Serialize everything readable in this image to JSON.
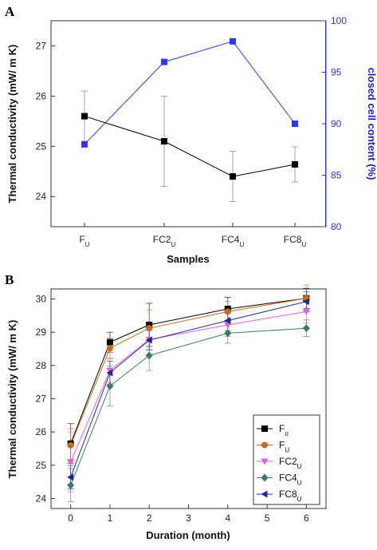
{
  "chart_data": [
    {
      "panel": "A",
      "type": "line",
      "categories": [
        "F",
        "FC2",
        "FC4",
        "FC8"
      ],
      "category_subscript": "U",
      "xlabel": "Samples",
      "ylabel": "Thermal conductivity (mW/ m K)",
      "ylim": [
        23.4,
        27.5
      ],
      "yticks": [
        24,
        25,
        26,
        27
      ],
      "y2label": "closed cell content (%)",
      "y2lim": [
        80,
        100
      ],
      "y2ticks": [
        80,
        85,
        90,
        95,
        100
      ],
      "colors": {
        "left": "#000000",
        "right": "#3333ff"
      },
      "series": [
        {
          "axis": "left",
          "marker": "square",
          "values": [
            25.6,
            25.1,
            24.4,
            24.64
          ],
          "errors": [
            0.5,
            0.9,
            0.5,
            0.35
          ]
        },
        {
          "axis": "right",
          "marker": "square",
          "values": [
            88,
            96,
            98,
            90
          ]
        }
      ]
    },
    {
      "panel": "B",
      "type": "line",
      "x": [
        0,
        1,
        2,
        4,
        6
      ],
      "xticks": [
        0,
        1,
        2,
        3,
        4,
        5,
        6
      ],
      "xlim": [
        -0.5,
        6.5
      ],
      "xlabel": "Duration (month)",
      "ylabel": "Thermal conductivity (mW/ m K)",
      "ylim": [
        23.7,
        30.3
      ],
      "yticks": [
        24,
        25,
        26,
        27,
        28,
        29,
        30
      ],
      "legend_position": "bottom-right",
      "series": [
        {
          "name": "F",
          "sub": "o",
          "marker": "square",
          "color": "#000000",
          "values": [
            25.65,
            28.7,
            29.22,
            29.7,
            30.02
          ],
          "errors": [
            0.6,
            0.3,
            0.65,
            0.35,
            0.3
          ]
        },
        {
          "name": "F",
          "sub": "U",
          "marker": "circle",
          "color": "#c8691c",
          "values": [
            25.6,
            28.52,
            29.12,
            29.62,
            30.02
          ],
          "errors": [
            0.5,
            0.3,
            0.55,
            0.3,
            0.4
          ]
        },
        {
          "name": "FC2",
          "sub": "U",
          "marker": "tri-down",
          "color": "#e060e0",
          "values": [
            25.1,
            27.85,
            28.78,
            29.22,
            29.62
          ],
          "errors": [
            0.9,
            0.35,
            0.3,
            0.35,
            0.35
          ]
        },
        {
          "name": "FC4",
          "sub": "U",
          "marker": "diamond",
          "color": "#3d7a6a",
          "values": [
            24.4,
            27.38,
            28.3,
            28.97,
            29.12
          ],
          "errors": [
            0.5,
            0.6,
            0.45,
            0.3,
            0.25
          ]
        },
        {
          "name": "FC8",
          "sub": "U",
          "marker": "tri-left",
          "color": "#1e2a8a",
          "values": [
            24.64,
            27.78,
            28.76,
            29.35,
            29.92
          ],
          "errors": [
            0.35,
            0.35,
            0.3,
            0.3,
            0.3
          ]
        }
      ]
    }
  ]
}
